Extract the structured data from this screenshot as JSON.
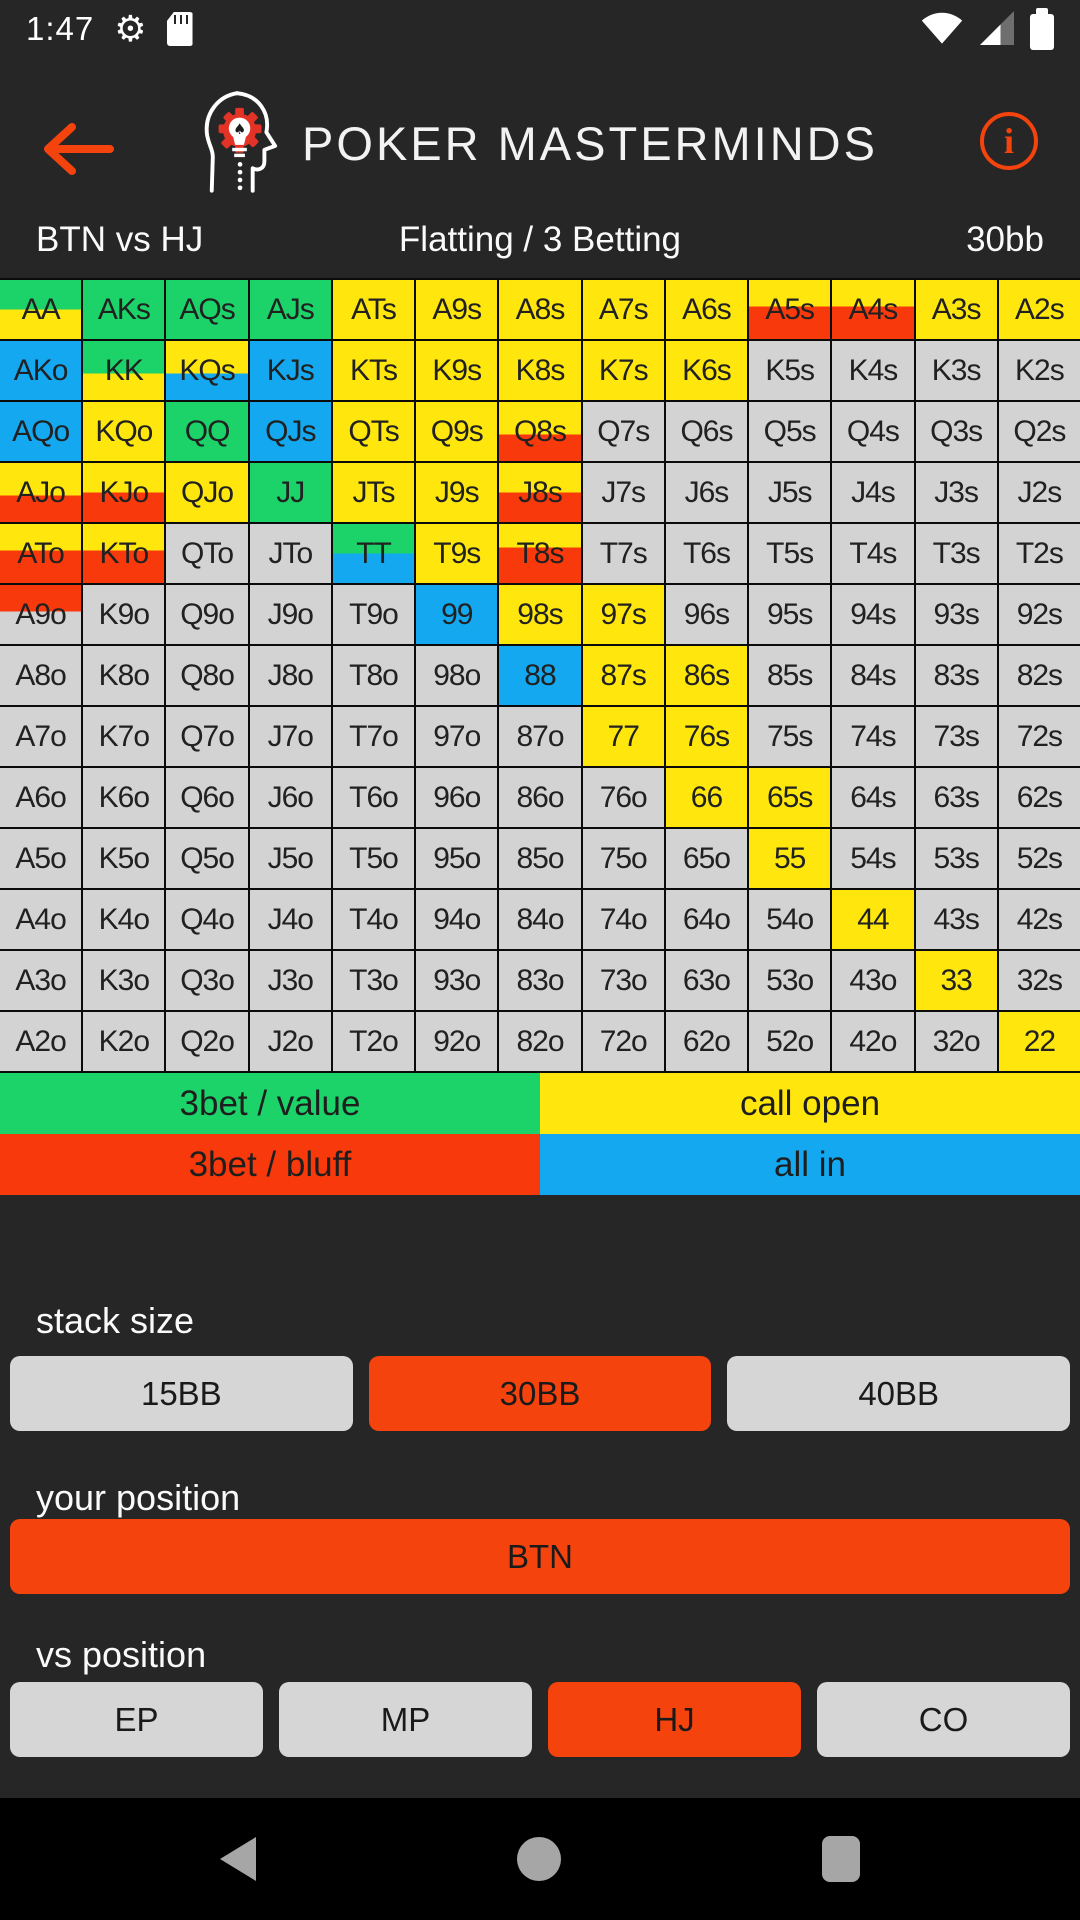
{
  "colors": {
    "background": "#262626",
    "nav_background": "#000000",
    "accent_orange": "#F5430E",
    "cell_text": "#212121",
    "label_text": "#FAFAFA",
    "palette": {
      "g": "#1BD368",
      "y": "#FFE70D",
      "r": "#F8390C",
      "b": "#14A8F0",
      "x": "#D3D3D3"
    }
  },
  "status_bar": {
    "time": "1:47",
    "icons": [
      "gear-icon",
      "sim-card-icon",
      "wifi-icon",
      "cell-signal-icon",
      "battery-icon"
    ]
  },
  "header": {
    "title": "POKER MASTERMINDS",
    "icons": [
      "back-arrow-icon",
      "logo-head-gear-bulb-icon",
      "info-icon"
    ]
  },
  "subheader": {
    "matchup": "BTN vs HJ",
    "mode": "Flatting / 3 Betting",
    "stack": "30bb"
  },
  "grid": {
    "rows": [
      [
        [
          "AA",
          "g/y@50"
        ],
        [
          "AKs",
          "g"
        ],
        [
          "AQs",
          "g"
        ],
        [
          "AJs",
          "g"
        ],
        [
          "ATs",
          "y"
        ],
        [
          "A9s",
          "y"
        ],
        [
          "A8s",
          "y"
        ],
        [
          "A7s",
          "y"
        ],
        [
          "A6s",
          "y"
        ],
        [
          "A5s",
          "y/r@45"
        ],
        [
          "A4s",
          "y/r@45"
        ],
        [
          "A3s",
          "y"
        ],
        [
          "A2s",
          "y"
        ]
      ],
      [
        [
          "AKo",
          "b"
        ],
        [
          "KK",
          "g/y@55"
        ],
        [
          "KQs",
          "y/b@55"
        ],
        [
          "KJs",
          "b"
        ],
        [
          "KTs",
          "y"
        ],
        [
          "K9s",
          "y"
        ],
        [
          "K8s",
          "y"
        ],
        [
          "K7s",
          "y"
        ],
        [
          "K6s",
          "y"
        ],
        [
          "K5s",
          "x"
        ],
        [
          "K4s",
          "x"
        ],
        [
          "K3s",
          "x"
        ],
        [
          "K2s",
          "x"
        ]
      ],
      [
        [
          "AQo",
          "b"
        ],
        [
          "KQo",
          "y"
        ],
        [
          "QQ",
          "g"
        ],
        [
          "QJs",
          "b"
        ],
        [
          "QTs",
          "y"
        ],
        [
          "Q9s",
          "y"
        ],
        [
          "Q8s",
          "y/r@55"
        ],
        [
          "Q7s",
          "x"
        ],
        [
          "Q6s",
          "x"
        ],
        [
          "Q5s",
          "x"
        ],
        [
          "Q4s",
          "x"
        ],
        [
          "Q3s",
          "x"
        ],
        [
          "Q2s",
          "x"
        ]
      ],
      [
        [
          "AJo",
          "y/r@55"
        ],
        [
          "KJo",
          "y/r@50"
        ],
        [
          "QJo",
          "y"
        ],
        [
          "JJ",
          "g"
        ],
        [
          "JTs",
          "y"
        ],
        [
          "J9s",
          "y"
        ],
        [
          "J8s",
          "y/r@50"
        ],
        [
          "J7s",
          "x"
        ],
        [
          "J6s",
          "x"
        ],
        [
          "J5s",
          "x"
        ],
        [
          "J4s",
          "x"
        ],
        [
          "J3s",
          "x"
        ],
        [
          "J2s",
          "x"
        ]
      ],
      [
        [
          "ATo",
          "y/r@45"
        ],
        [
          "KTo",
          "y/r@45"
        ],
        [
          "QTo",
          "x"
        ],
        [
          "JTo",
          "x"
        ],
        [
          "TT",
          "g/b@50"
        ],
        [
          "T9s",
          "y"
        ],
        [
          "T8s",
          "y/r@40"
        ],
        [
          "T7s",
          "x"
        ],
        [
          "T6s",
          "x"
        ],
        [
          "T5s",
          "x"
        ],
        [
          "T4s",
          "x"
        ],
        [
          "T3s",
          "x"
        ],
        [
          "T2s",
          "x"
        ]
      ],
      [
        [
          "A9o",
          "r/x@45"
        ],
        [
          "K9o",
          "x"
        ],
        [
          "Q9o",
          "x"
        ],
        [
          "J9o",
          "x"
        ],
        [
          "T9o",
          "x"
        ],
        [
          "99",
          "b"
        ],
        [
          "98s",
          "y"
        ],
        [
          "97s",
          "y"
        ],
        [
          "96s",
          "x"
        ],
        [
          "95s",
          "x"
        ],
        [
          "94s",
          "x"
        ],
        [
          "93s",
          "x"
        ],
        [
          "92s",
          "x"
        ]
      ],
      [
        [
          "A8o",
          "x"
        ],
        [
          "K8o",
          "x"
        ],
        [
          "Q8o",
          "x"
        ],
        [
          "J8o",
          "x"
        ],
        [
          "T8o",
          "x"
        ],
        [
          "98o",
          "x"
        ],
        [
          "88",
          "b"
        ],
        [
          "87s",
          "y"
        ],
        [
          "86s",
          "y"
        ],
        [
          "85s",
          "x"
        ],
        [
          "84s",
          "x"
        ],
        [
          "83s",
          "x"
        ],
        [
          "82s",
          "x"
        ]
      ],
      [
        [
          "A7o",
          "x"
        ],
        [
          "K7o",
          "x"
        ],
        [
          "Q7o",
          "x"
        ],
        [
          "J7o",
          "x"
        ],
        [
          "T7o",
          "x"
        ],
        [
          "97o",
          "x"
        ],
        [
          "87o",
          "x"
        ],
        [
          "77",
          "y"
        ],
        [
          "76s",
          "y"
        ],
        [
          "75s",
          "x"
        ],
        [
          "74s",
          "x"
        ],
        [
          "73s",
          "x"
        ],
        [
          "72s",
          "x"
        ]
      ],
      [
        [
          "A6o",
          "x"
        ],
        [
          "K6o",
          "x"
        ],
        [
          "Q6o",
          "x"
        ],
        [
          "J6o",
          "x"
        ],
        [
          "T6o",
          "x"
        ],
        [
          "96o",
          "x"
        ],
        [
          "86o",
          "x"
        ],
        [
          "76o",
          "x"
        ],
        [
          "66",
          "y"
        ],
        [
          "65s",
          "y"
        ],
        [
          "64s",
          "x"
        ],
        [
          "63s",
          "x"
        ],
        [
          "62s",
          "x"
        ]
      ],
      [
        [
          "A5o",
          "x"
        ],
        [
          "K5o",
          "x"
        ],
        [
          "Q5o",
          "x"
        ],
        [
          "J5o",
          "x"
        ],
        [
          "T5o",
          "x"
        ],
        [
          "95o",
          "x"
        ],
        [
          "85o",
          "x"
        ],
        [
          "75o",
          "x"
        ],
        [
          "65o",
          "x"
        ],
        [
          "55",
          "y"
        ],
        [
          "54s",
          "x"
        ],
        [
          "53s",
          "x"
        ],
        [
          "52s",
          "x"
        ]
      ],
      [
        [
          "A4o",
          "x"
        ],
        [
          "K4o",
          "x"
        ],
        [
          "Q4o",
          "x"
        ],
        [
          "J4o",
          "x"
        ],
        [
          "T4o",
          "x"
        ],
        [
          "94o",
          "x"
        ],
        [
          "84o",
          "x"
        ],
        [
          "74o",
          "x"
        ],
        [
          "64o",
          "x"
        ],
        [
          "54o",
          "x"
        ],
        [
          "44",
          "y"
        ],
        [
          "43s",
          "x"
        ],
        [
          "42s",
          "x"
        ]
      ],
      [
        [
          "A3o",
          "x"
        ],
        [
          "K3o",
          "x"
        ],
        [
          "Q3o",
          "x"
        ],
        [
          "J3o",
          "x"
        ],
        [
          "T3o",
          "x"
        ],
        [
          "93o",
          "x"
        ],
        [
          "83o",
          "x"
        ],
        [
          "73o",
          "x"
        ],
        [
          "63o",
          "x"
        ],
        [
          "53o",
          "x"
        ],
        [
          "43o",
          "x"
        ],
        [
          "33",
          "y"
        ],
        [
          "32s",
          "x"
        ]
      ],
      [
        [
          "A2o",
          "x"
        ],
        [
          "K2o",
          "x"
        ],
        [
          "Q2o",
          "x"
        ],
        [
          "J2o",
          "x"
        ],
        [
          "T2o",
          "x"
        ],
        [
          "92o",
          "x"
        ],
        [
          "82o",
          "x"
        ],
        [
          "72o",
          "x"
        ],
        [
          "62o",
          "x"
        ],
        [
          "52o",
          "x"
        ],
        [
          "42o",
          "x"
        ],
        [
          "32o",
          "x"
        ],
        [
          "22",
          "y"
        ]
      ]
    ]
  },
  "legend": {
    "items": [
      {
        "label": "3bet / value",
        "color": "g"
      },
      {
        "label": "call open",
        "color": "y"
      },
      {
        "label": "3bet / bluff",
        "color": "r"
      },
      {
        "label": "all in",
        "color": "b"
      }
    ]
  },
  "controls": {
    "stack_size": {
      "label": "stack size",
      "options": [
        "15BB",
        "30BB",
        "40BB"
      ],
      "selected": "30BB"
    },
    "your_position": {
      "label": "your position",
      "options": [
        "BTN"
      ],
      "selected": "BTN"
    },
    "vs_position": {
      "label": "vs position",
      "options": [
        "EP",
        "MP",
        "HJ",
        "CO"
      ],
      "selected": "HJ"
    }
  },
  "nav_bar": {
    "icons": [
      "nav-back-icon",
      "nav-home-icon",
      "nav-recents-icon"
    ]
  }
}
